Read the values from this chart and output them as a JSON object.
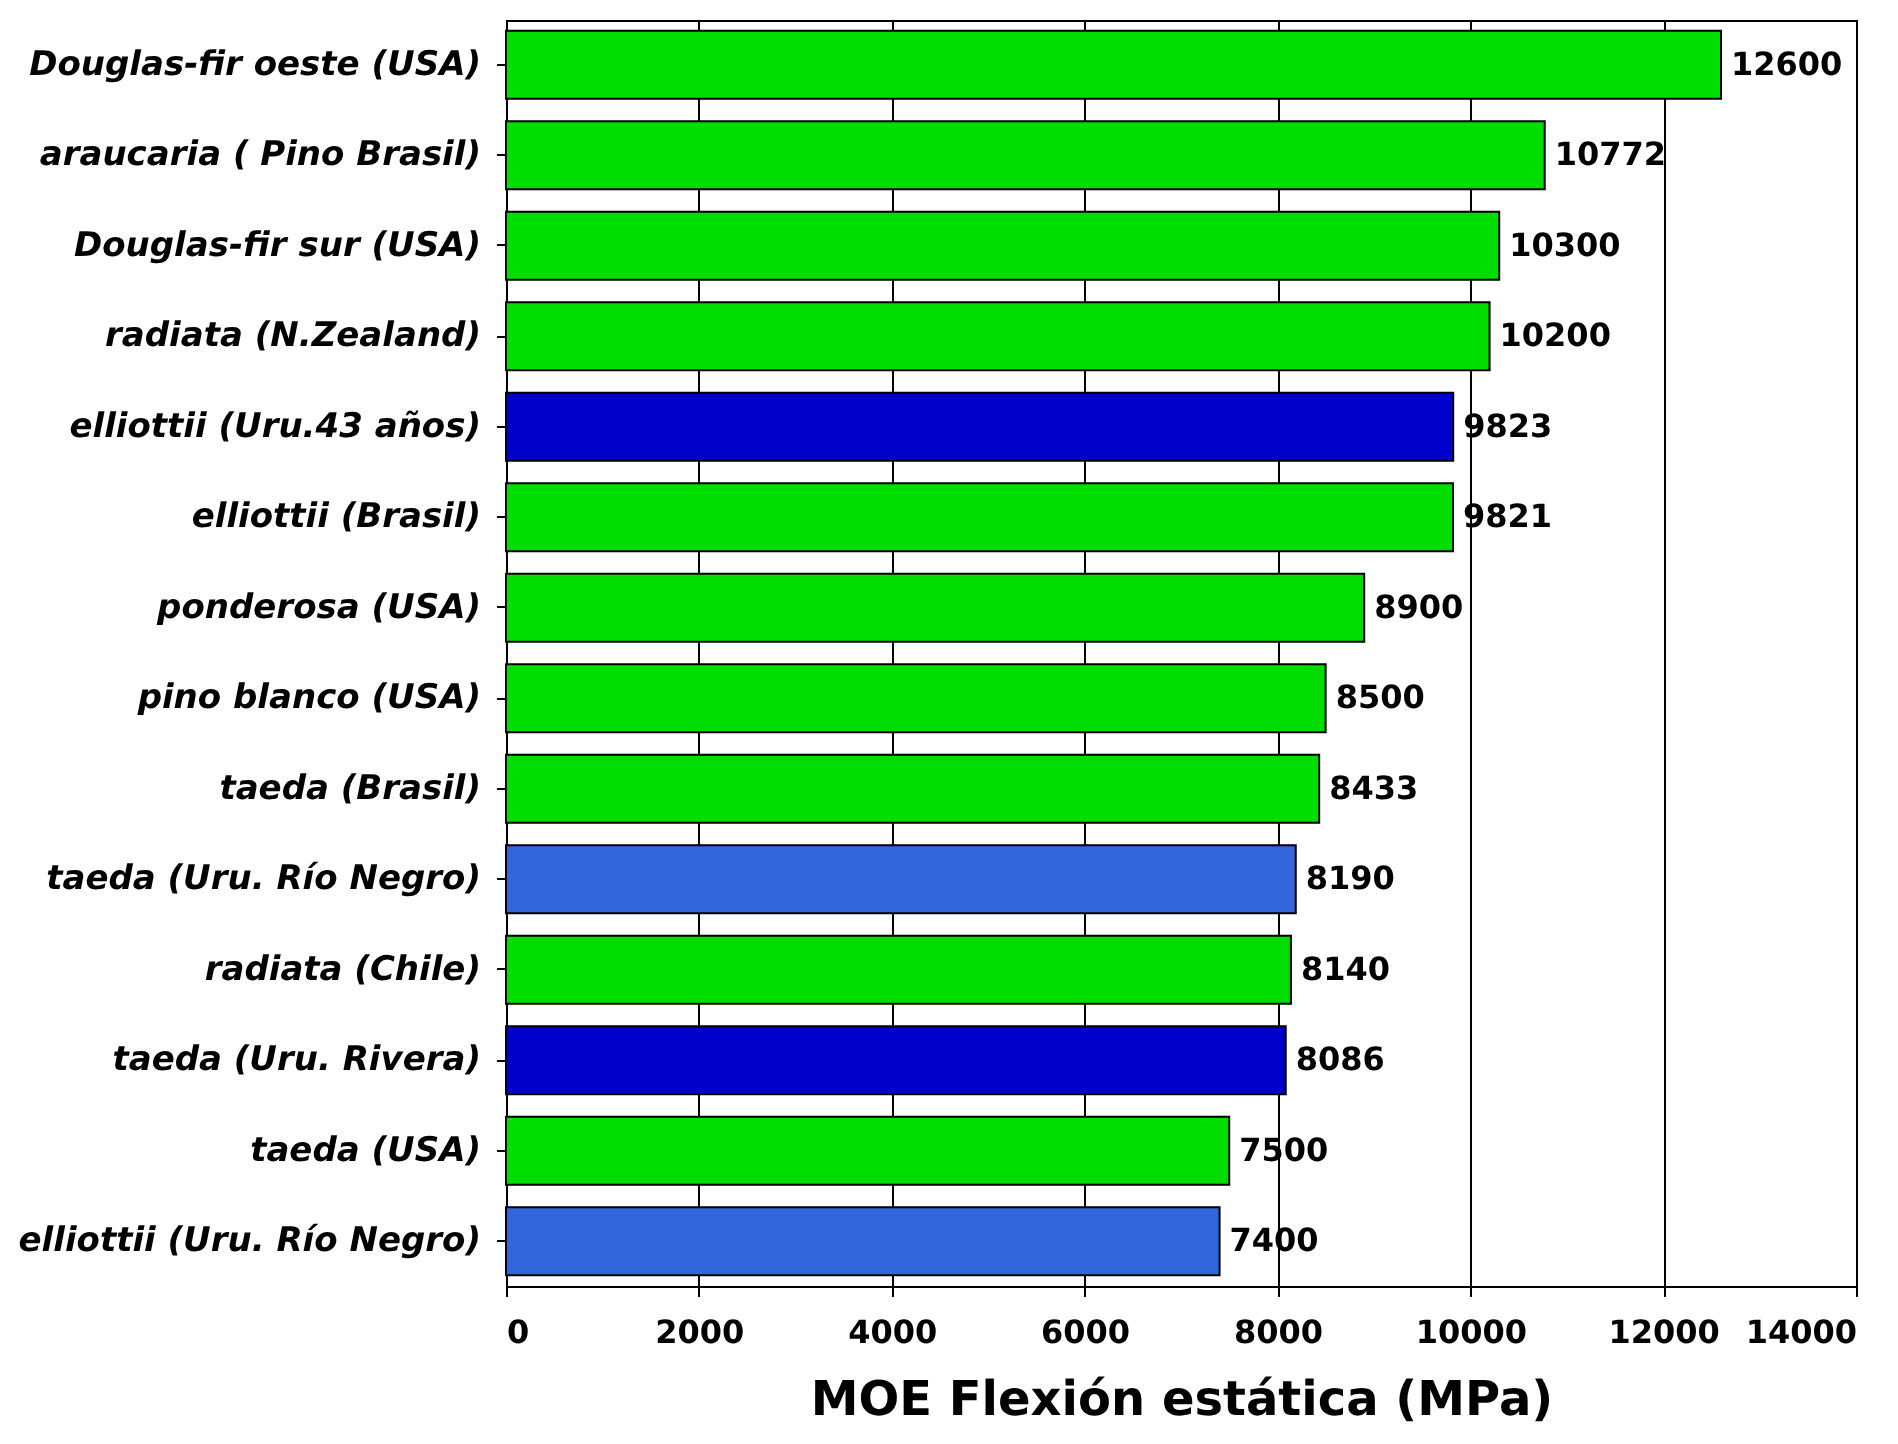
{
  "chart_data": {
    "type": "bar",
    "orientation": "horizontal",
    "xlabel": "MOE Flexión estática (MPa)",
    "categories": [
      "Douglas-fir oeste (USA)",
      "araucaria ( Pino Brasil)",
      "Douglas-fir sur (USA)",
      "radiata (N.Zealand)",
      "elliottii (Uru.43 años)",
      "elliottii (Brasil)",
      "ponderosa (USA)",
      "pino blanco (USA)",
      "taeda (Brasil)",
      "taeda (Uru. Río Negro)",
      "radiata (Chile)",
      "taeda (Uru. Rivera)",
      "taeda (USA)",
      "elliottii (Uru. Río Negro)"
    ],
    "values": [
      12600,
      10772,
      10300,
      10200,
      9823,
      9821,
      8900,
      8500,
      8433,
      8190,
      8140,
      8086,
      7500,
      7400
    ],
    "colors": [
      "#00dd00",
      "#00dd00",
      "#00dd00",
      "#00dd00",
      "#0000cc",
      "#00dd00",
      "#00dd00",
      "#00dd00",
      "#00dd00",
      "#3366dd",
      "#00dd00",
      "#0000cc",
      "#00dd00",
      "#3366dd"
    ],
    "xlim": [
      0,
      14000
    ],
    "xticks": [
      0,
      2000,
      4000,
      6000,
      8000,
      10000,
      12000,
      14000
    ],
    "grid": "x",
    "data_labels": true
  }
}
